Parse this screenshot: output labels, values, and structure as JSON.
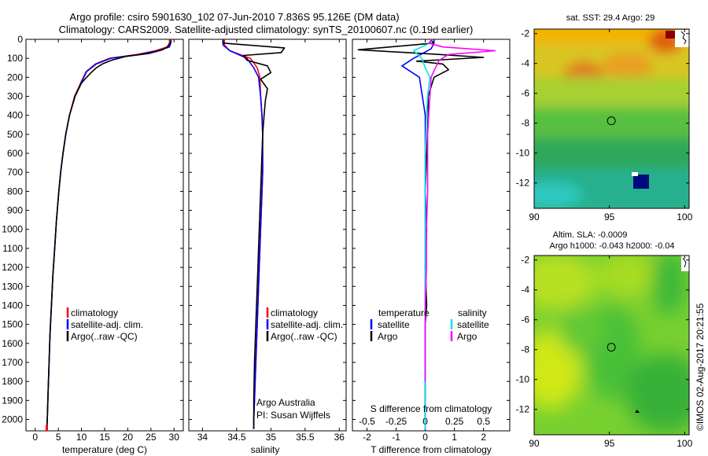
{
  "header": {
    "title_line1": "Argo profile: csiro 5901630_102 07-Jun-2010 7.836S 95.126E (DM data)",
    "title_line2": "Climatology: CARS2009. Satellite-adjusted climatology: synTS_20100607.nc (0.19d earlier)"
  },
  "colors": {
    "climatology": "#ff0000",
    "satellite": "#0000ff",
    "argo": "#000000",
    "sal_satellite": "#00e5ee",
    "sal_argo": "#ff00ff"
  },
  "depth_ticks": [
    "0",
    "100",
    "200",
    "300",
    "400",
    "500",
    "600",
    "700",
    "800",
    "900",
    "1000",
    "1100",
    "1200",
    "1300",
    "1400",
    "1500",
    "1600",
    "1700",
    "1800",
    "1900",
    "2000"
  ],
  "chart_data": [
    {
      "type": "line",
      "name": "temperature-profile",
      "xlabel": "temperature (deg C)",
      "ylabel": "",
      "xlim": [
        -2,
        32
      ],
      "ylim": [
        2060,
        0
      ],
      "xticks": [
        0,
        5,
        10,
        15,
        20,
        25,
        30
      ],
      "xtick_labels": [
        "0",
        "5",
        "10",
        "15",
        "20",
        "25",
        "30"
      ],
      "legend": [
        "climatology",
        "satellite-adj. clim.",
        "Argo(..raw -QC)"
      ],
      "series": [
        {
          "name": "climatology",
          "color": "#ff0000",
          "x": [
            29.0,
            29.0,
            28.5,
            26.0,
            22.0,
            16.0,
            13.0,
            11.0,
            10.0,
            8.5,
            7.4,
            6.6,
            6.0,
            5.5,
            5.1,
            4.6,
            4.2,
            3.8,
            3.5,
            3.2,
            3.0,
            2.8,
            2.6,
            2.5
          ],
          "y": [
            0,
            20,
            40,
            60,
            80,
            100,
            130,
            170,
            220,
            300,
            400,
            500,
            600,
            700,
            800,
            950,
            1100,
            1250,
            1400,
            1550,
            1700,
            1850,
            2000,
            2050
          ]
        },
        {
          "name": "satellite",
          "color": "#0000ff",
          "x": [
            29.3,
            29.3,
            29.0,
            26.5,
            22.5,
            16.3,
            13.2,
            11.1,
            10.1,
            8.6,
            7.4,
            6.6,
            6.0,
            5.5,
            5.1,
            4.6,
            4.2,
            3.8,
            3.5,
            3.2,
            3.0,
            2.8,
            2.6,
            2.5
          ],
          "y": [
            0,
            20,
            40,
            60,
            80,
            100,
            130,
            170,
            220,
            300,
            400,
            500,
            600,
            700,
            800,
            950,
            1100,
            1250,
            1400,
            1550,
            1700,
            1850,
            2000,
            2050
          ]
        },
        {
          "name": "argo",
          "color": "#000000",
          "x": [
            29.4,
            29.2,
            28.6,
            27.5,
            24.5,
            19.5,
            16.5,
            14.5,
            13.2,
            12.3,
            11.1,
            10.0,
            8.6,
            7.4,
            6.6,
            6.0,
            5.5,
            5.1,
            4.6,
            4.2,
            3.8,
            3.5,
            3.2,
            3.0,
            2.8,
            2.6,
            2.5
          ],
          "y": [
            5,
            20,
            40,
            55,
            75,
            90,
            110,
            130,
            150,
            170,
            200,
            230,
            300,
            400,
            500,
            600,
            700,
            800,
            950,
            1100,
            1250,
            1400,
            1550,
            1700,
            1850,
            2000,
            2050
          ]
        }
      ],
      "markers": [
        {
          "name": "climatology-deep-marker",
          "x": 2.5,
          "y": [
            2030,
            2060
          ],
          "color": "#ff0000"
        }
      ]
    },
    {
      "type": "line",
      "name": "salinity-profile",
      "xlabel": "salinity",
      "xlim": [
        33.8,
        36.1
      ],
      "ylim": [
        2060,
        0
      ],
      "xticks": [
        34,
        34.5,
        35,
        35.5,
        36
      ],
      "xtick_labels": [
        "34",
        "34.5",
        "35",
        "35.5",
        "36"
      ],
      "legend": [
        "climatology",
        "satellite-adj. clim.",
        "Argo(..raw -QC)"
      ],
      "annotation": [
        "Argo Australia",
        "PI: Susan Wijffels"
      ],
      "series": [
        {
          "name": "climatology",
          "color": "#ff0000",
          "x": [
            34.32,
            34.32,
            34.4,
            34.7,
            34.8,
            34.84,
            34.85,
            34.87,
            34.88,
            34.88,
            34.86,
            34.84,
            34.82,
            34.8,
            34.78,
            34.76,
            34.75,
            34.75
          ],
          "y": [
            0,
            30,
            60,
            100,
            150,
            200,
            300,
            400,
            500,
            700,
            900,
            1100,
            1300,
            1500,
            1700,
            1900,
            2000,
            2050
          ]
        },
        {
          "name": "satellite",
          "color": "#0000ff",
          "x": [
            34.3,
            34.3,
            34.4,
            34.65,
            34.75,
            34.82,
            34.85,
            34.87,
            34.88,
            34.88,
            34.86,
            34.84,
            34.82,
            34.8,
            34.78,
            34.76,
            34.75,
            34.75
          ],
          "y": [
            0,
            30,
            60,
            100,
            150,
            200,
            300,
            400,
            500,
            700,
            900,
            1100,
            1300,
            1500,
            1700,
            1900,
            2000,
            2050
          ]
        },
        {
          "name": "argo",
          "color": "#000000",
          "x": [
            34.3,
            34.3,
            35.2,
            35.15,
            34.6,
            34.65,
            34.95,
            35.0,
            34.85,
            34.95,
            34.92,
            34.9,
            34.88,
            34.86,
            34.84,
            34.82,
            34.8,
            34.78,
            34.76,
            34.75,
            34.75
          ],
          "y": [
            5,
            20,
            45,
            70,
            85,
            110,
            140,
            175,
            210,
            260,
            320,
            400,
            500,
            700,
            900,
            1100,
            1300,
            1500,
            1700,
            1900,
            2050
          ]
        }
      ]
    },
    {
      "type": "line",
      "name": "difference-profile",
      "xlabel": "T difference from climatology",
      "xlabel_top": "S difference from climatology",
      "xlim": [
        -2.5,
        2.9
      ],
      "ylim": [
        2060,
        0
      ],
      "xticks": [
        -2,
        -1,
        0,
        1,
        2
      ],
      "xtick_labels": [
        "-2",
        "-1",
        "0",
        "1",
        "2"
      ],
      "sticks": [
        -0.5,
        -0.25,
        0,
        0.25,
        0.5
      ],
      "stick_labels": [
        "-0.5",
        "-0.25",
        "0",
        "0.25",
        "0.5"
      ],
      "s_scale": 4,
      "legend_temperature": {
        "header": "temperature",
        "items": [
          "satellite",
          "Argo"
        ]
      },
      "legend_salinity": {
        "header": "salinity",
        "items": [
          "satellite",
          "Argo"
        ]
      },
      "series": [
        {
          "name": "T satellite",
          "color": "#0000ff",
          "x": [
            0.3,
            0.3,
            0.2,
            -0.4,
            -0.8,
            -0.5,
            -0.2,
            -0.15,
            -0.1,
            0,
            0,
            0,
            0,
            0,
            0,
            0,
            0
          ],
          "y": [
            0,
            20,
            50,
            100,
            140,
            170,
            200,
            250,
            300,
            400,
            600,
            800,
            1000,
            1300,
            1600,
            1900,
            2050
          ]
        },
        {
          "name": "T Argo",
          "color": "#000000",
          "x": [
            0.2,
            0.3,
            -2.3,
            0.5,
            2.0,
            -0.3,
            0.6,
            0.8,
            0.3,
            0.1,
            0.1,
            0.05,
            0,
            0.05,
            0,
            0.05,
            0,
            0,
            0,
            0
          ],
          "y": [
            5,
            20,
            55,
            80,
            95,
            115,
            130,
            160,
            200,
            300,
            400,
            600,
            800,
            1000,
            1200,
            1400,
            1500,
            1600,
            1800,
            2000
          ]
        },
        {
          "name": "S satellite",
          "color": "#00e5ee",
          "x": [
            0.05,
            0.04,
            -0.1,
            -0.03,
            0,
            0.04,
            0.02,
            0.01,
            0,
            0,
            0,
            0,
            0
          ],
          "y": [
            5,
            20,
            60,
            100,
            150,
            200,
            300,
            400,
            600,
            1000,
            1500,
            1900,
            2050
          ]
        },
        {
          "name": "S Argo",
          "color": "#ff00ff",
          "x": [
            0.05,
            0.03,
            0.15,
            0.6,
            0.2,
            0.12,
            0.08,
            0.05,
            0.04,
            0.03,
            0.02,
            0.02,
            0.02,
            0.01,
            0.01,
            0,
            0,
            0
          ],
          "y": [
            5,
            20,
            40,
            60,
            80,
            110,
            160,
            200,
            300,
            400,
            500,
            600,
            800,
            1000,
            1200,
            1400,
            1600,
            1800
          ]
        }
      ]
    },
    {
      "type": "heatmap",
      "name": "sst-map",
      "title": "sat. SST: 29.4 Argo: 29",
      "xlim": [
        90,
        100.3
      ],
      "ylim": [
        -13.7,
        -1.7
      ],
      "xticks": [
        90,
        95,
        100
      ],
      "xtick_labels": [
        "90",
        "95",
        "100"
      ],
      "yticks": [
        -2,
        -4,
        -6,
        -8,
        -10,
        -12
      ],
      "ytick_labels": [
        "-2",
        "-4",
        "-6",
        "-8",
        "-10",
        "-12"
      ],
      "argo_position": {
        "lon": 95.13,
        "lat": -7.84
      }
    },
    {
      "type": "heatmap",
      "name": "sla-map",
      "title": "Altim. SLA: -0.0009",
      "subtitle": "Argo h1000: -0.043 h2000: -0.04",
      "xlim": [
        90,
        100.3
      ],
      "ylim": [
        -13.7,
        -1.7
      ],
      "xticks": [
        90,
        95,
        100
      ],
      "xtick_labels": [
        "90",
        "95",
        "100"
      ],
      "yticks": [
        -2,
        -4,
        -6,
        -8,
        -10,
        -12
      ],
      "ytick_labels": [
        "-2",
        "-4",
        "-6",
        "-8",
        "-10",
        "-12"
      ],
      "argo_position": {
        "lon": 95.13,
        "lat": -7.84
      }
    }
  ],
  "footer": {
    "credit": "©IMOS 02-Aug-2017 20:21:55"
  }
}
